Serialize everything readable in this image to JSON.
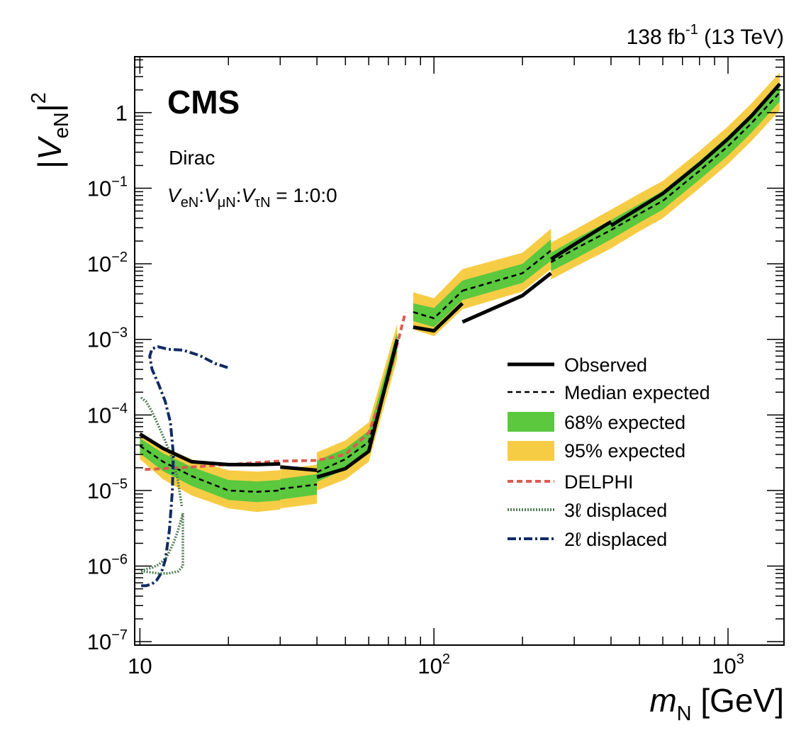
{
  "header": {
    "lumi_base": "138 fb",
    "lumi_sup": "-1",
    "lumi_rest": " (13 TeV)"
  },
  "cms_label": "CMS",
  "scenario": "Dirac",
  "coupling": {
    "v": "V",
    "s1": "eN",
    "sep1": ":",
    "s2": "μN",
    "sep2": ":",
    "s3": "τN",
    "rhs": " = 1:0:0"
  },
  "axes": {
    "ylabel": {
      "open": "|",
      "v": "V",
      "sub": "eN",
      "close": "|",
      "sup": "2"
    },
    "xlabel": {
      "m": "m",
      "sub": "N",
      "unit": " [GeV]"
    },
    "x_ticks": [
      {
        "value": 10,
        "base": "10",
        "sup": ""
      },
      {
        "value": 100,
        "base": "10",
        "sup": "2"
      },
      {
        "value": 1000,
        "base": "10",
        "sup": "3"
      }
    ],
    "y_ticks": [
      {
        "value": 1e-07,
        "base": "10",
        "sup": "−7"
      },
      {
        "value": 1e-06,
        "base": "10",
        "sup": "−6"
      },
      {
        "value": 1e-05,
        "base": "10",
        "sup": "−5"
      },
      {
        "value": 0.0001,
        "base": "10",
        "sup": "−4"
      },
      {
        "value": 0.001,
        "base": "10",
        "sup": "−3"
      },
      {
        "value": 0.01,
        "base": "10",
        "sup": "−2"
      },
      {
        "value": 0.1,
        "base": "10",
        "sup": "−1"
      },
      {
        "value": 1,
        "base": "1",
        "sup": ""
      }
    ]
  },
  "legend": [
    {
      "key": "observed",
      "label": "Observed"
    },
    {
      "key": "median",
      "label": "Median expected"
    },
    {
      "key": "band68",
      "label": "68% expected"
    },
    {
      "key": "band95",
      "label": "95% expected"
    },
    {
      "key": "delphi",
      "label": "DELPHI"
    },
    {
      "key": "disp3",
      "label": "3ℓ displaced"
    },
    {
      "key": "disp2",
      "label": "2ℓ displaced"
    }
  ],
  "colors": {
    "band68": "#5bc83e",
    "band95": "#f7cc45",
    "delphi": "#de5a4e",
    "disp3": "#4f7d53",
    "disp2": "#102b63",
    "observed": "#000000",
    "median": "#000000"
  },
  "chart_data": {
    "type": "line",
    "xscale": "log",
    "yscale": "log",
    "xlim": [
      9.6,
      1550
    ],
    "ylim": [
      9e-08,
      5.5
    ],
    "segments": [
      {
        "x": [
          10,
          12,
          15,
          20,
          25,
          30
        ],
        "observed": [
          5.6e-05,
          3.6e-05,
          2.4e-05,
          2.2e-05,
          2.2e-05,
          2.25e-05
        ],
        "median": [
          3.9e-05,
          2.4e-05,
          1.55e-05,
          1e-05,
          9.6e-06,
          1e-05
        ],
        "p68_lo": [
          3.1e-05,
          1.8e-05,
          1.15e-05,
          7.5e-06,
          7e-06,
          7.4e-06
        ],
        "p68_hi": [
          4.9e-05,
          3.1e-05,
          2.05e-05,
          1.38e-05,
          1.32e-05,
          1.38e-05
        ],
        "p95_lo": [
          2.6e-05,
          1.4e-05,
          8.6e-06,
          5.8e-06,
          5.2e-06,
          5.6e-06
        ],
        "p95_hi": [
          5.9e-05,
          3.8e-05,
          2.6e-05,
          1.85e-05,
          1.78e-05,
          1.85e-05
        ]
      },
      {
        "x": [
          30,
          40
        ],
        "observed": [
          2.05e-05,
          1.85e-05
        ],
        "median": [
          1.05e-05,
          1.2e-05
        ],
        "p68_lo": [
          7.6e-06,
          8.8e-06
        ],
        "p68_hi": [
          1.42e-05,
          1.65e-05
        ],
        "p95_lo": [
          5.8e-06,
          6.7e-06
        ],
        "p95_hi": [
          1.9e-05,
          2.2e-05
        ]
      },
      {
        "x": [
          40,
          50,
          60,
          75
        ],
        "observed": [
          1.5e-05,
          1.95e-05,
          3.3e-05,
          0.001
        ],
        "median": [
          1.75e-05,
          2.6e-05,
          4.4e-05,
          0.0009
        ],
        "p68_lo": [
          1.3e-05,
          1.9e-05,
          3.2e-05,
          0.00068
        ],
        "p68_hi": [
          2.5e-05,
          3.6e-05,
          6.2e-05,
          0.00125
        ],
        "p95_lo": [
          1e-05,
          1.4e-05,
          2.4e-05,
          0.00055
        ],
        "p95_hi": [
          3.2e-05,
          4.6e-05,
          8e-05,
          0.0016
        ]
      },
      {
        "x": [
          85,
          100,
          125
        ],
        "observed": [
          0.00145,
          0.0013,
          0.003
        ],
        "median": [
          0.0023,
          0.0019,
          0.0044
        ],
        "p68_lo": [
          0.00175,
          0.00145,
          0.0033
        ],
        "p68_hi": [
          0.003,
          0.0026,
          0.006
        ],
        "p95_lo": [
          0.00135,
          0.0011,
          0.0025
        ],
        "p95_hi": [
          0.0042,
          0.0035,
          0.0085
        ]
      },
      {
        "x": [
          125,
          200,
          250
        ],
        "observed": [
          0.0017,
          0.0038,
          0.0075
        ],
        "median": [
          0.0044,
          0.0075,
          0.015
        ],
        "p68_lo": [
          0.0033,
          0.0056,
          0.011
        ],
        "p68_hi": [
          0.006,
          0.01,
          0.021
        ],
        "p95_lo": [
          0.0025,
          0.0043,
          0.0085
        ],
        "p95_hi": [
          0.0085,
          0.014,
          0.029
        ]
      },
      {
        "x": [
          250,
          300,
          400
        ],
        "observed": [
          0.0115,
          0.018,
          0.036
        ],
        "median": [
          0.0105,
          0.0155,
          0.028
        ],
        "p68_lo": [
          0.008,
          0.0115,
          0.021
        ],
        "p68_hi": [
          0.014,
          0.021,
          0.038
        ],
        "p95_lo": [
          0.0062,
          0.009,
          0.016
        ],
        "p95_hi": [
          0.019,
          0.028,
          0.052
        ]
      },
      {
        "x": [
          400,
          500,
          600,
          800,
          1000,
          1200,
          1500
        ],
        "observed": [
          0.032,
          0.055,
          0.085,
          0.21,
          0.45,
          0.9,
          2.4
        ],
        "median": [
          0.028,
          0.046,
          0.068,
          0.17,
          0.36,
          0.72,
          1.85
        ],
        "p68_lo": [
          0.021,
          0.035,
          0.052,
          0.13,
          0.27,
          0.54,
          1.4
        ],
        "p68_hi": [
          0.038,
          0.062,
          0.092,
          0.23,
          0.49,
          0.98,
          2.5
        ],
        "p95_lo": [
          0.016,
          0.027,
          0.04,
          0.1,
          0.21,
          0.42,
          1.08
        ],
        "p95_hi": [
          0.052,
          0.085,
          0.125,
          0.31,
          0.66,
          1.32,
          3.4
        ]
      }
    ],
    "delphi": {
      "x": [
        10.4,
        12,
        15,
        20,
        30,
        40,
        50,
        60,
        70,
        80
      ],
      "y": [
        1.9e-05,
        1.95e-05,
        2.05e-05,
        2.2e-05,
        2.45e-05,
        2.5e-05,
        3e-05,
        5.8e-05,
        0.0003,
        0.0023
      ]
    },
    "displaced_3l": {
      "x": [
        10.1,
        10.4,
        11,
        11.6,
        12.3,
        13,
        13.5,
        14,
        14,
        13.5,
        12.5,
        11.6,
        10.8,
        10.2,
        10.1
      ],
      "y": [
        8.5e-07,
        9e-07,
        9.5e-07,
        1.05e-06,
        1.3e-06,
        2e-06,
        3e-06,
        5e-06,
        1e-06,
        8.5e-07,
        8e-07,
        8e-07,
        8.3e-07,
        8.5e-07,
        8.5e-07
      ],
      "upper_x": [
        10.1,
        10.5,
        11,
        11.6,
        12.2,
        12.8,
        13.4,
        13.9
      ],
      "upper_y": [
        0.00017,
        0.00015,
        0.00011,
        7e-05,
        4.5e-05,
        2.8e-05,
        1.5e-05,
        6e-06
      ]
    },
    "displaced_2l": {
      "x": [
        10.1,
        10.5,
        11,
        11.4,
        11.8,
        12.2,
        12.6,
        12.9,
        13.0,
        12.7,
        12.2,
        11.6,
        11.0,
        10.8,
        11.0,
        11.5,
        12.5,
        14,
        16,
        18,
        20
      ],
      "y": [
        5.5e-07,
        5.5e-07,
        5.8e-07,
        6.5e-07,
        8e-07,
        1.2e-06,
        3e-06,
        1e-05,
        3e-05,
        8e-05,
        0.00015,
        0.00025,
        0.0004,
        0.0006,
        0.00075,
        0.0008,
        0.00074,
        0.00072,
        0.00061,
        0.00048,
        0.00042
      ]
    }
  }
}
